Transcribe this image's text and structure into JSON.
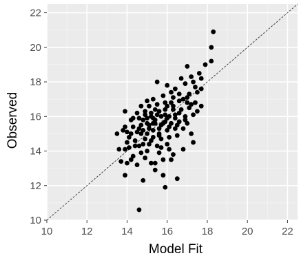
{
  "chart_data": {
    "type": "scatter",
    "title": "",
    "xlabel": "Model Fit",
    "ylabel": "Observed",
    "xlim": [
      10,
      22.5
    ],
    "ylim": [
      10,
      22.5
    ],
    "xticks": [
      10,
      12,
      14,
      16,
      18,
      20,
      22
    ],
    "yticks": [
      10,
      12,
      14,
      16,
      18,
      20,
      22
    ],
    "grid": true,
    "reference_line": {
      "type": "identity",
      "style": "dashed",
      "from": [
        10,
        10
      ],
      "to": [
        22.5,
        22.5
      ]
    },
    "colors": {
      "panel": "#ebebeb",
      "grid": "#ffffff",
      "points": "#000000",
      "reference_line": "#333333"
    },
    "points": [
      [
        14.6,
        10.6
      ],
      [
        15.9,
        11.9
      ],
      [
        14.8,
        12.3
      ],
      [
        16.5,
        12.4
      ],
      [
        15.8,
        12.6
      ],
      [
        13.9,
        12.6
      ],
      [
        15.4,
        13.3
      ],
      [
        14.0,
        13.3
      ],
      [
        13.7,
        13.4
      ],
      [
        14.2,
        13.5
      ],
      [
        14.9,
        13.6
      ],
      [
        15.2,
        13.3
      ],
      [
        15.8,
        13.5
      ],
      [
        16.2,
        13.5
      ],
      [
        16.3,
        13.8
      ],
      [
        14.3,
        13.7
      ],
      [
        14.7,
        13.9
      ],
      [
        15.0,
        14.0
      ],
      [
        15.6,
        13.9
      ],
      [
        13.9,
        14.1
      ],
      [
        14.1,
        14.2
      ],
      [
        14.6,
        14.3
      ],
      [
        15.1,
        14.4
      ],
      [
        15.5,
        14.3
      ],
      [
        16.0,
        14.4
      ],
      [
        16.8,
        14.1
      ],
      [
        17.3,
        14.5
      ],
      [
        13.6,
        14.1
      ],
      [
        14.4,
        14.6
      ],
      [
        14.9,
        14.7
      ],
      [
        15.3,
        14.8
      ],
      [
        15.7,
        14.7
      ],
      [
        16.1,
        14.8
      ],
      [
        16.5,
        14.9
      ],
      [
        14.1,
        14.8
      ],
      [
        13.5,
        15.0
      ],
      [
        14.0,
        15.1
      ],
      [
        14.5,
        15.1
      ],
      [
        14.8,
        15.2
      ],
      [
        15.0,
        15.0
      ],
      [
        15.3,
        15.2
      ],
      [
        15.6,
        15.3
      ],
      [
        16.0,
        15.2
      ],
      [
        16.4,
        15.3
      ],
      [
        16.8,
        15.3
      ],
      [
        17.2,
        15.0
      ],
      [
        13.9,
        15.4
      ],
      [
        14.3,
        15.4
      ],
      [
        14.7,
        15.5
      ],
      [
        15.1,
        15.5
      ],
      [
        15.4,
        15.6
      ],
      [
        15.8,
        15.6
      ],
      [
        16.2,
        15.6
      ],
      [
        16.6,
        15.7
      ],
      [
        17.0,
        15.6
      ],
      [
        14.2,
        15.8
      ],
      [
        14.6,
        15.9
      ],
      [
        15.0,
        15.9
      ],
      [
        15.3,
        15.9
      ],
      [
        15.7,
        16.0
      ],
      [
        16.1,
        16.0
      ],
      [
        16.4,
        15.9
      ],
      [
        16.9,
        16.0
      ],
      [
        17.3,
        16.1
      ],
      [
        13.9,
        16.3
      ],
      [
        14.5,
        16.2
      ],
      [
        14.9,
        16.3
      ],
      [
        15.2,
        16.2
      ],
      [
        15.6,
        16.3
      ],
      [
        15.9,
        16.4
      ],
      [
        16.3,
        16.4
      ],
      [
        16.7,
        16.4
      ],
      [
        17.1,
        16.5
      ],
      [
        14.7,
        16.6
      ],
      [
        15.1,
        16.6
      ],
      [
        15.5,
        16.7
      ],
      [
        15.9,
        16.8
      ],
      [
        16.2,
        16.8
      ],
      [
        16.6,
        16.9
      ],
      [
        17.0,
        16.8
      ],
      [
        17.4,
        16.8
      ],
      [
        15.3,
        17.0
      ],
      [
        15.8,
        17.2
      ],
      [
        16.2,
        17.4
      ],
      [
        16.6,
        17.3
      ],
      [
        17.1,
        17.3
      ],
      [
        17.5,
        17.4
      ],
      [
        16.0,
        17.8
      ],
      [
        16.4,
        17.6
      ],
      [
        16.9,
        17.9
      ],
      [
        17.3,
        18.0
      ],
      [
        17.7,
        17.6
      ],
      [
        15.5,
        18.0
      ],
      [
        16.7,
        18.2
      ],
      [
        17.2,
        18.3
      ],
      [
        17.7,
        18.2
      ],
      [
        17.0,
        18.9
      ],
      [
        17.6,
        18.5
      ],
      [
        17.9,
        19.0
      ],
      [
        18.2,
        19.2
      ],
      [
        18.2,
        20.0
      ],
      [
        18.3,
        20.9
      ],
      [
        17.4,
        17.7
      ],
      [
        16.8,
        17.0
      ],
      [
        16.3,
        16.6
      ],
      [
        15.9,
        16.1
      ],
      [
        15.4,
        15.8
      ],
      [
        15.0,
        15.6
      ],
      [
        14.6,
        15.3
      ],
      [
        14.2,
        15.0
      ],
      [
        14.8,
        14.4
      ],
      [
        15.2,
        14.6
      ],
      [
        15.6,
        14.9
      ],
      [
        16.1,
        15.4
      ],
      [
        16.5,
        15.5
      ],
      [
        16.9,
        15.8
      ],
      [
        17.5,
        16.3
      ],
      [
        17.7,
        16.6
      ],
      [
        15.0,
        16.9
      ],
      [
        14.8,
        15.8
      ],
      [
        15.4,
        16.4
      ],
      [
        15.7,
        15.5
      ],
      [
        15.1,
        15.3
      ],
      [
        14.4,
        14.3
      ],
      [
        14.0,
        14.5
      ],
      [
        14.5,
        13.2
      ],
      [
        15.4,
        12.9
      ],
      [
        15.6,
        15.0
      ],
      [
        16.0,
        16.6
      ],
      [
        16.3,
        17.1
      ],
      [
        15.2,
        16.0
      ],
      [
        14.7,
        15.0
      ],
      [
        14.3,
        15.9
      ],
      [
        15.9,
        15.7
      ],
      [
        16.6,
        16.2
      ],
      [
        17.2,
        16.7
      ],
      [
        16.0,
        15.9
      ],
      [
        15.5,
        16.1
      ],
      [
        14.9,
        16.1
      ],
      [
        16.4,
        16.1
      ],
      [
        17.0,
        17.1
      ],
      [
        16.1,
        14.1
      ],
      [
        13.8,
        15.2
      ],
      [
        15.7,
        14.2
      ],
      [
        15.3,
        15.6
      ]
    ]
  }
}
